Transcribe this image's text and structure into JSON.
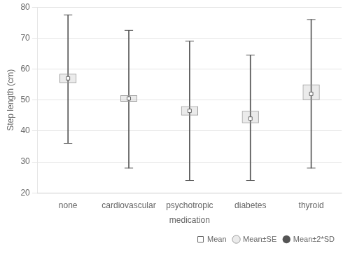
{
  "chart_data": {
    "type": "box",
    "categories": [
      "none",
      "cardiovascular",
      "psychotropic",
      "diabetes",
      "thyroid"
    ],
    "xlabel": "medication",
    "ylabel": "Step length (cm)",
    "series": [
      {
        "name": "Mean",
        "color": "#666666",
        "marker": "square",
        "values": [
          57.0,
          50.5,
          46.5,
          44.0,
          52.0
        ]
      },
      {
        "name": "Mean±SE",
        "color": "#999999",
        "lower": [
          55.5,
          49.5,
          45.0,
          42.5,
          50.0
        ],
        "upper": [
          58.5,
          51.5,
          48.0,
          46.5,
          55.0
        ]
      },
      {
        "name": "Mean±2*SD",
        "color": "#555555",
        "lower": [
          36.0,
          28.0,
          24.0,
          24.0,
          28.0
        ],
        "upper": [
          77.5,
          72.5,
          69.0,
          64.5,
          76.0
        ]
      }
    ],
    "ylim": [
      20,
      80
    ],
    "yticks": [
      20,
      30,
      40,
      50,
      60,
      70,
      80
    ],
    "grid": true,
    "legend": "lower right"
  }
}
